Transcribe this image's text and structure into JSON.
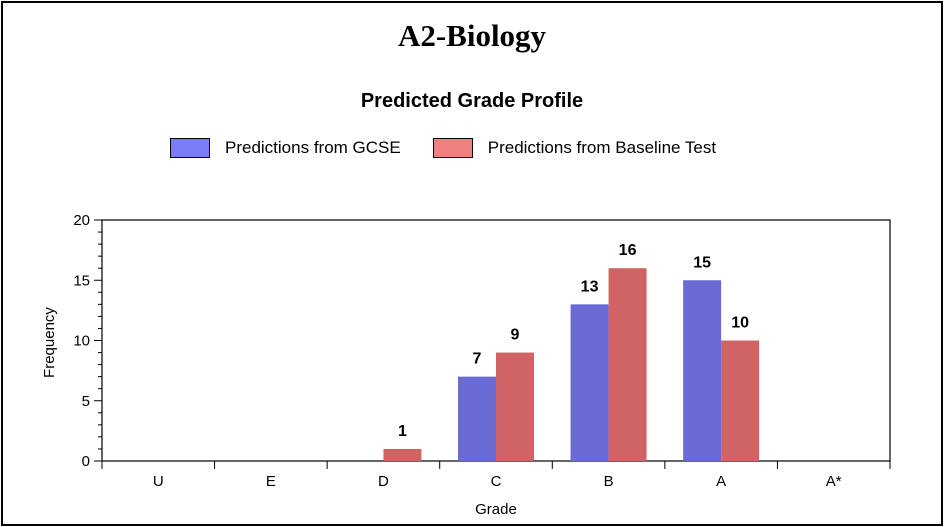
{
  "page_title": "A2-Biology",
  "chart_data": {
    "type": "bar",
    "title": "Predicted Grade Profile",
    "xlabel": "Grade",
    "ylabel": "Frequency",
    "categories": [
      "U",
      "E",
      "D",
      "C",
      "B",
      "A",
      "A*"
    ],
    "ylim": [
      0,
      20
    ],
    "yticks": [
      0,
      5,
      10,
      15,
      20
    ],
    "legend_position": "top",
    "grid": false,
    "series": [
      {
        "name": "Predictions from GCSE",
        "color": "#6b6bd6",
        "swatch_color": "#7b7bf5",
        "values": [
          0,
          0,
          0,
          7,
          13,
          15,
          0
        ]
      },
      {
        "name": "Predictions from Baseline Test",
        "color": "#d06464",
        "swatch_color": "#f08080",
        "values": [
          0,
          0,
          1,
          9,
          16,
          10,
          0
        ]
      }
    ]
  }
}
